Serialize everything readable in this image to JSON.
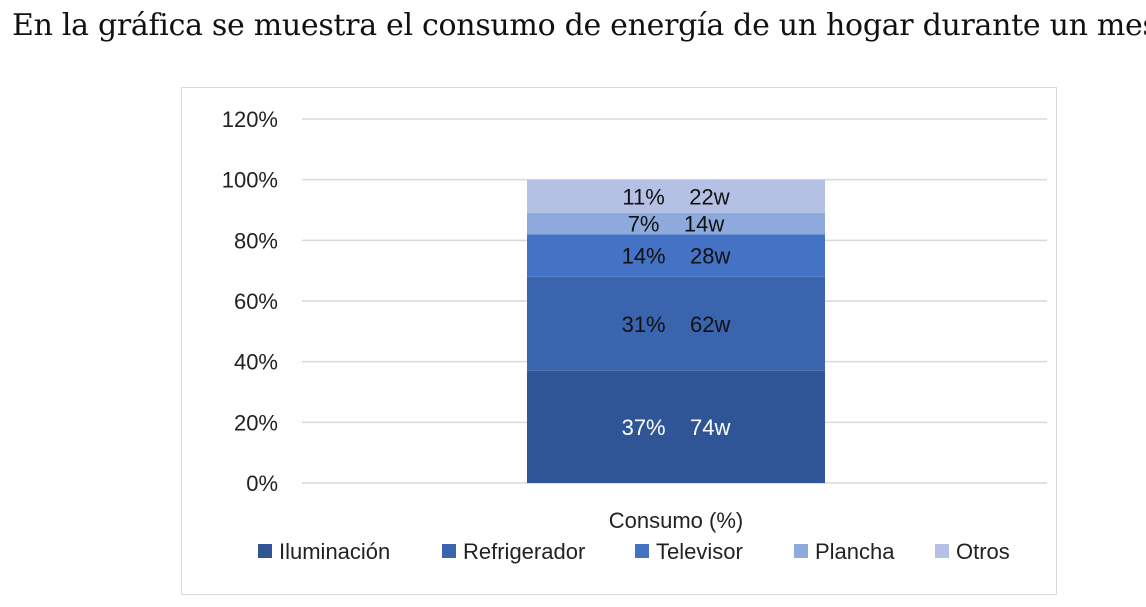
{
  "intro_text": "En la gráfica se muestra el consumo de energía de un hogar durante un mes.",
  "chart_data": {
    "type": "bar",
    "stacked": true,
    "categories": [
      "Consumo (%)"
    ],
    "series": [
      {
        "name": "Iluminación",
        "values": [
          37
        ],
        "label": "37%    74w",
        "color": "#2f5597",
        "label_color": "#ffffff"
      },
      {
        "name": "Refrigerador",
        "values": [
          31
        ],
        "label": "31%    62w",
        "color": "#3a64ad",
        "label_color": "#111111"
      },
      {
        "name": "Televisor",
        "values": [
          14
        ],
        "label": "14%    28w",
        "color": "#4472c4",
        "label_color": "#111111"
      },
      {
        "name": "Plancha",
        "values": [
          7
        ],
        "label": "7%    14w",
        "color": "#8ea9db",
        "label_color": "#111111"
      },
      {
        "name": "Otros",
        "values": [
          11
        ],
        "label": "11%    22w",
        "color": "#b4c1e4",
        "label_color": "#111111"
      }
    ],
    "y_ticks": [
      "0%",
      "20%",
      "40%",
      "60%",
      "80%",
      "100%",
      "120%"
    ],
    "ylim": [
      0,
      120
    ],
    "xlabel": "Consumo (%)",
    "grid": true,
    "legend_position": "bottom"
  }
}
